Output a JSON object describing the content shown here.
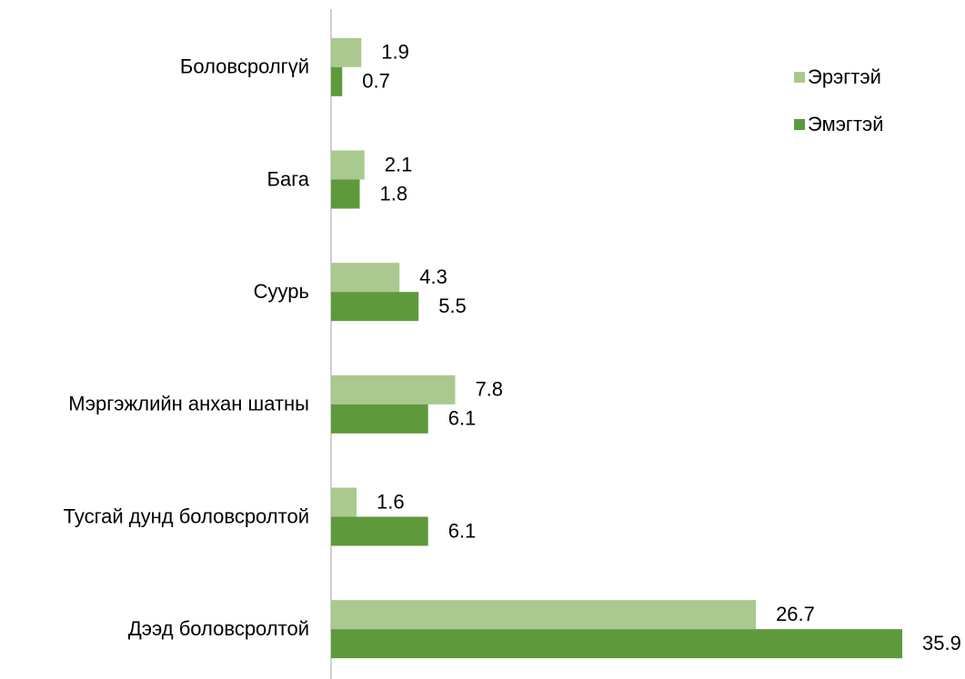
{
  "chart_data": {
    "type": "bar",
    "orientation": "horizontal",
    "categories": [
      "Боловсролгүй",
      "Бага",
      "Суурь",
      "Мэргэжлийн анхан шатны",
      "Тусгай дунд боловсролтой",
      "Дээд боловсролтой"
    ],
    "series": [
      {
        "name": "Эрэгтэй",
        "color": "#a9c98f",
        "values": [
          1.9,
          2.1,
          4.3,
          7.8,
          1.6,
          26.7
        ]
      },
      {
        "name": "Эмэгтэй",
        "color": "#5e9a3c",
        "values": [
          0.7,
          1.8,
          5.5,
          6.1,
          6.1,
          35.9
        ]
      }
    ],
    "legend": "top-right",
    "data_labels": true
  }
}
